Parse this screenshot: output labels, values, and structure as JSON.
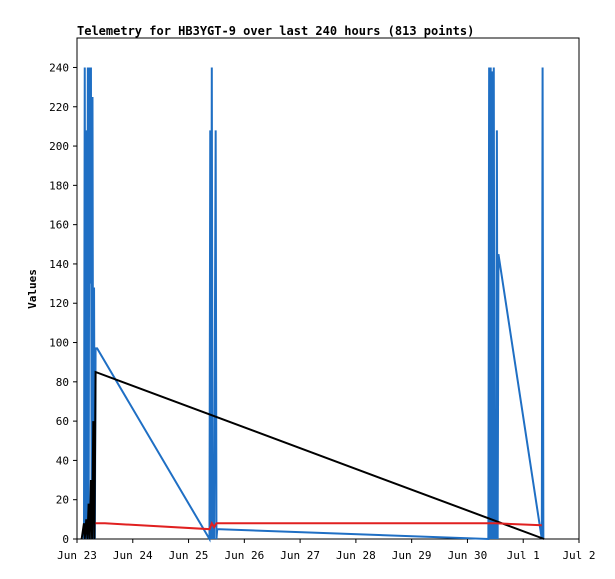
{
  "chart_data": {
    "type": "line",
    "title": "Telemetry for HB3YGT-9 over last 240 hours (813 points)",
    "xlabel": "",
    "ylabel": "Values",
    "xlim": [
      "2024-06-23T00:00",
      "2024-07-02T00:00"
    ],
    "ylim": [
      0,
      255
    ],
    "x_ticks": [
      "Jun 23",
      "Jun 24",
      "Jun 25",
      "Jun 26",
      "Jun 27",
      "Jun 28",
      "Jun 29",
      "Jun 30",
      "Jul 1",
      "Jul 2"
    ],
    "y_ticks": [
      0,
      20,
      40,
      60,
      80,
      100,
      120,
      140,
      160,
      180,
      200,
      220,
      240
    ],
    "grid": false,
    "legend": "none",
    "series": [
      {
        "color": "#1f6fc4",
        "x": [
          "2024-06-23T03:00",
          "2024-06-23T03:20",
          "2024-06-23T03:40",
          "2024-06-23T04:00",
          "2024-06-23T04:20",
          "2024-06-23T04:40",
          "2024-06-23T05:00",
          "2024-06-23T05:20",
          "2024-06-23T05:40",
          "2024-06-23T06:00",
          "2024-06-23T06:20",
          "2024-06-23T06:40",
          "2024-06-23T07:00",
          "2024-06-23T07:20",
          "2024-06-23T07:40",
          "2024-06-23T08:00",
          "2024-06-23T08:20",
          "2024-06-23T08:40",
          "2024-06-25T09:00",
          "2024-06-25T09:20",
          "2024-06-25T09:40",
          "2024-06-25T10:00",
          "2024-06-25T10:20",
          "2024-06-25T10:40",
          "2024-06-25T11:00",
          "2024-06-25T11:40",
          "2024-06-25T12:00",
          "2024-06-25T12:20",
          "2024-06-30T09:00",
          "2024-06-30T09:20",
          "2024-06-30T09:40",
          "2024-06-30T10:00",
          "2024-06-30T10:20",
          "2024-06-30T10:40",
          "2024-06-30T11:00",
          "2024-06-30T11:20",
          "2024-06-30T11:40",
          "2024-06-30T12:00",
          "2024-06-30T12:20",
          "2024-06-30T12:40",
          "2024-06-30T13:00",
          "2024-06-30T13:20",
          "2024-07-01T08:00",
          "2024-07-01T08:20",
          "2024-07-01T08:40"
        ],
        "values": [
          0,
          240,
          0,
          208,
          0,
          240,
          0,
          240,
          130,
          240,
          0,
          225,
          0,
          128,
          0,
          97,
          97,
          97,
          0,
          208,
          0,
          240,
          0,
          24,
          0,
          208,
          0,
          5,
          0,
          240,
          0,
          240,
          0,
          238,
          0,
          240,
          0,
          65,
          0,
          208,
          0,
          145,
          0,
          240,
          0
        ]
      },
      {
        "color": "#000000",
        "x": [
          "2024-06-23T02:00",
          "2024-06-23T03:00",
          "2024-06-23T03:20",
          "2024-06-23T04:00",
          "2024-06-23T04:30",
          "2024-06-23T05:00",
          "2024-06-23T05:30",
          "2024-06-23T06:00",
          "2024-06-23T06:30",
          "2024-06-23T07:00",
          "2024-06-23T07:30",
          "2024-06-23T08:00",
          "2024-07-01T09:00"
        ],
        "values": [
          0,
          8,
          0,
          10,
          0,
          18,
          0,
          30,
          0,
          60,
          0,
          85,
          0
        ]
      },
      {
        "color": "#e02020",
        "x": [
          "2024-06-23T08:00",
          "2024-06-23T12:00",
          "2024-06-25T09:00",
          "2024-06-25T10:00",
          "2024-06-25T11:00",
          "2024-06-25T12:00",
          "2024-06-25T13:00",
          "2024-06-30T09:00",
          "2024-06-30T12:00",
          "2024-07-01T08:00"
        ],
        "values": [
          8,
          8,
          5,
          8,
          6,
          8,
          8,
          8,
          8,
          7
        ]
      }
    ]
  }
}
